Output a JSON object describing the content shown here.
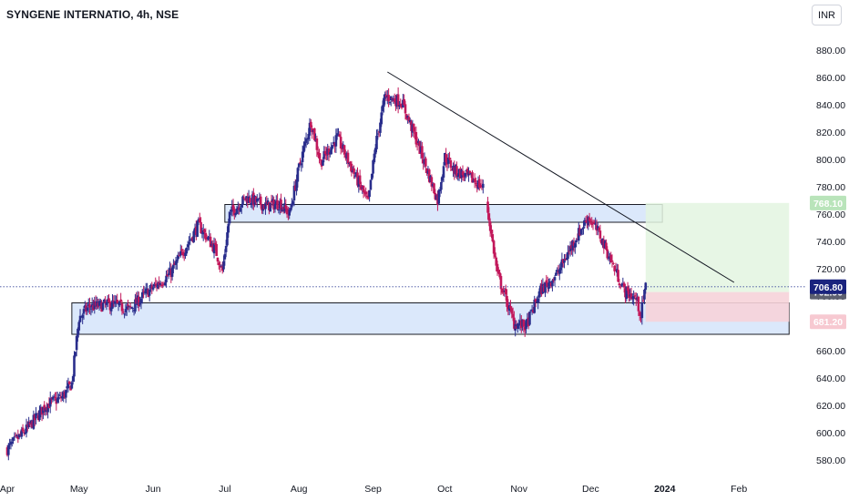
{
  "header": {
    "title": "SYNGENE INTERNATIO, 4h, NSE",
    "currency": "INR"
  },
  "colors": {
    "up": "#2a2e8c",
    "down": "#c2185b",
    "zone_fill": "#dbe8fb",
    "zone_border": "#1b1d26",
    "target_fill": "#e3f5e1",
    "stop_fill": "#f6d3d9",
    "trendline": "#131722",
    "last_price_tag": "#1a237e",
    "target_tag": "#b9e4ba",
    "stop_tag": "#f7c9d1",
    "axis_text": "#131722"
  },
  "chart_data": {
    "type": "candlestick",
    "y_axis": {
      "min": 570,
      "max": 890,
      "ticks": [
        "580.00",
        "600.00",
        "620.00",
        "640.00",
        "660.00",
        "680.00",
        "700.00",
        "720.00",
        "740.00",
        "760.00",
        "780.00",
        "800.00",
        "820.00",
        "840.00",
        "860.00",
        "880.00"
      ]
    },
    "x_axis": {
      "labels": [
        {
          "text": "Apr",
          "date": "2023-04-01",
          "bold": false
        },
        {
          "text": "May",
          "date": "2023-05-01",
          "bold": false
        },
        {
          "text": "Jun",
          "date": "2023-06-01",
          "bold": false
        },
        {
          "text": "Jul",
          "date": "2023-07-01",
          "bold": false
        },
        {
          "text": "Aug",
          "date": "2023-08-01",
          "bold": false
        },
        {
          "text": "Sep",
          "date": "2023-09-01",
          "bold": false
        },
        {
          "text": "Oct",
          "date": "2023-10-01",
          "bold": false
        },
        {
          "text": "Nov",
          "date": "2023-11-01",
          "bold": false
        },
        {
          "text": "Dec",
          "date": "2023-12-01",
          "bold": false
        },
        {
          "text": "2024",
          "date": "2024-01-01",
          "bold": true
        },
        {
          "text": "Feb",
          "date": "2024-02-01",
          "bold": false
        }
      ]
    },
    "price_path": [
      [
        "2023-04-01",
        588
      ],
      [
        "2023-04-10",
        604
      ],
      [
        "2023-04-17",
        620
      ],
      [
        "2023-04-24",
        626
      ],
      [
        "2023-04-28",
        636
      ],
      [
        "2023-05-01",
        684
      ],
      [
        "2023-05-05",
        692
      ],
      [
        "2023-05-15",
        694
      ],
      [
        "2023-05-22",
        690
      ],
      [
        "2023-05-29",
        702
      ],
      [
        "2023-06-08",
        716
      ],
      [
        "2023-06-20",
        752
      ],
      [
        "2023-06-27",
        734
      ],
      [
        "2023-06-30",
        718
      ],
      [
        "2023-07-03",
        760
      ],
      [
        "2023-07-10",
        772
      ],
      [
        "2023-07-18",
        766
      ],
      [
        "2023-07-24",
        768
      ],
      [
        "2023-07-28",
        760
      ],
      [
        "2023-08-01",
        794
      ],
      [
        "2023-08-06",
        828
      ],
      [
        "2023-08-10",
        798
      ],
      [
        "2023-08-17",
        816
      ],
      [
        "2023-08-24",
        790
      ],
      [
        "2023-08-30",
        768
      ],
      [
        "2023-09-02",
        810
      ],
      [
        "2023-09-06",
        846
      ],
      [
        "2023-09-13",
        842
      ],
      [
        "2023-09-20",
        810
      ],
      [
        "2023-09-28",
        770
      ],
      [
        "2023-10-01",
        802
      ],
      [
        "2023-10-05",
        792
      ],
      [
        "2023-10-12",
        786
      ],
      [
        "2023-10-18",
        778
      ],
      [
        "2023-10-19",
        762
      ],
      [
        "2023-10-23",
        716
      ],
      [
        "2023-10-30",
        680
      ],
      [
        "2023-11-04",
        678
      ],
      [
        "2023-11-10",
        704
      ],
      [
        "2023-11-17",
        716
      ],
      [
        "2023-11-24",
        740
      ],
      [
        "2023-11-30",
        758
      ],
      [
        "2023-12-05",
        744
      ],
      [
        "2023-12-10",
        724
      ],
      [
        "2023-12-15",
        704
      ],
      [
        "2023-12-20",
        698
      ],
      [
        "2023-12-22",
        686
      ],
      [
        "2023-12-24",
        707
      ]
    ],
    "gaps": [
      [
        "2023-10-17",
        "2023-10-19"
      ]
    ],
    "support_zones": [
      {
        "from": "2023-07-01",
        "to": "2023-12-31",
        "low": 754,
        "high": 767
      },
      {
        "from": "2023-04-28",
        "to": "2024-02-22",
        "low": 672,
        "high": 695
      }
    ],
    "trendline": {
      "from": [
        "2023-09-07",
        864
      ],
      "to": [
        "2024-01-30",
        710
      ]
    },
    "position": {
      "from": "2023-12-24",
      "to": "2024-02-22",
      "entry": 702.9,
      "target": 768.1,
      "stop": 681.2
    },
    "price_tags": {
      "target": "768.10",
      "last": "706.80",
      "entry": "702.90",
      "stop": "681.20"
    },
    "last_price": 706.8
  }
}
